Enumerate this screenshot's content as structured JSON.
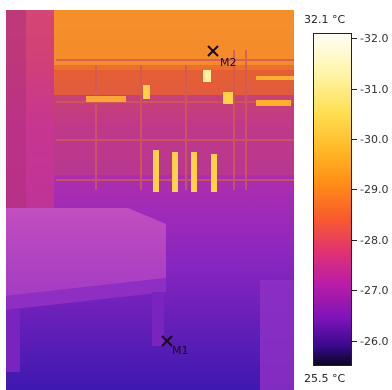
{
  "markers": [
    {
      "label": "M1"
    },
    {
      "label": "M2"
    }
  ],
  "scale": {
    "max_label": "32.1 °C",
    "min_label": "25.5 °C",
    "max_value": 32.1,
    "min_value": 25.5,
    "ticks": [
      "32.0",
      "31.0",
      "30.0",
      "29.0",
      "28.0",
      "27.0",
      "26.0"
    ],
    "colors": [
      "#fffef6",
      "#ffdf50",
      "#ff8a17",
      "#e03275",
      "#7d13b8",
      "#0c0526"
    ]
  }
}
